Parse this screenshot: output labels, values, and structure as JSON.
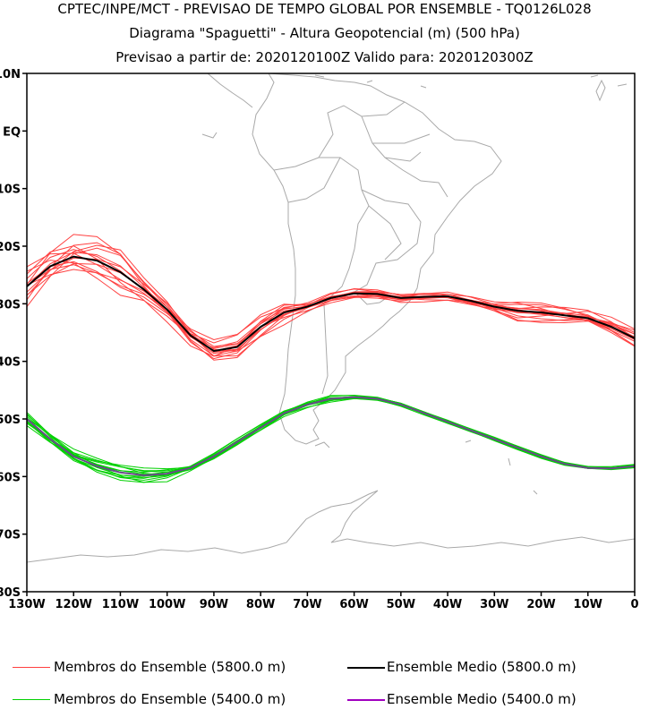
{
  "title": {
    "line1": "CPTEC/INPE/MCT - PREVISAO DE TEMPO GLOBAL POR ENSEMBLE - TQ0126L028",
    "line2": "Diagrama \"Spaguetti\" - Altura Geopotencial (m) (500 hPa)",
    "line3": "Previsao a partir de: 2020120100Z  Valido para: 2020120300Z"
  },
  "map": {
    "lat_ticks": [
      "10N",
      "EQ",
      "10S",
      "20S",
      "30S",
      "40S",
      "50S",
      "60S",
      "70S",
      "80S"
    ],
    "lon_ticks": [
      "130W",
      "120W",
      "110W",
      "100W",
      "90W",
      "80W",
      "70W",
      "60W",
      "50W",
      "40W",
      "30W",
      "20W",
      "10W",
      "0"
    ],
    "lon_range": [
      -130,
      0
    ],
    "lat_range": [
      -80,
      10
    ],
    "coastline_color": "#a9a9a9"
  },
  "legend": {
    "members_5800": "Membros do Ensemble (5800.0 m)",
    "mean_5800": "Ensemble Medio (5800.0 m)",
    "members_5400": "Membros do Ensemble (5400.0 m)",
    "mean_5400": "Ensemble Medio (5400.0 m)",
    "colors": {
      "members_5800": "#ff4040",
      "mean_5800": "#000000",
      "members_5400": "#00d000",
      "mean_5400": "#a000c0"
    }
  },
  "chart_data": {
    "type": "line",
    "x_unit": "longitude (deg)",
    "y_unit": "latitude (deg)",
    "series": [
      {
        "name": "Ensemble Medio (5800.0 m)",
        "x": [
          -130,
          -125,
          -120,
          -115,
          -110,
          -105,
          -100,
          -95,
          -90,
          -85,
          -80,
          -75,
          -70,
          -65,
          -60,
          -55,
          -50,
          -45,
          -40,
          -35,
          -30,
          -25,
          -20,
          -15,
          -10,
          -5,
          0
        ],
        "y": [
          -27,
          -23.5,
          -21.8,
          -22.5,
          -24.5,
          -27.5,
          -31,
          -35.5,
          -38.2,
          -37.5,
          -34,
          -31.5,
          -30.5,
          -29,
          -28.2,
          -28.3,
          -29,
          -28.8,
          -28.7,
          -29.5,
          -30.5,
          -31.2,
          -31.5,
          -32,
          -32.5,
          -34,
          -36
        ]
      },
      {
        "name": "Ensemble Medio (5400.0 m)",
        "x": [
          -130,
          -125,
          -120,
          -115,
          -110,
          -105,
          -100,
          -95,
          -90,
          -85,
          -80,
          -75,
          -70,
          -65,
          -60,
          -55,
          -50,
          -45,
          -40,
          -35,
          -30,
          -25,
          -20,
          -15,
          -10,
          -5,
          0
        ],
        "y": [
          -50,
          -53.5,
          -56.5,
          -58.2,
          -59.3,
          -59.8,
          -59.5,
          -58.5,
          -56.5,
          -54,
          -51.5,
          -49,
          -47.5,
          -46.5,
          -46.2,
          -46.5,
          -47.5,
          -49,
          -50.5,
          -52,
          -53.5,
          -55,
          -56.5,
          -57.8,
          -58.5,
          -58.6,
          -58.2
        ]
      }
    ]
  }
}
